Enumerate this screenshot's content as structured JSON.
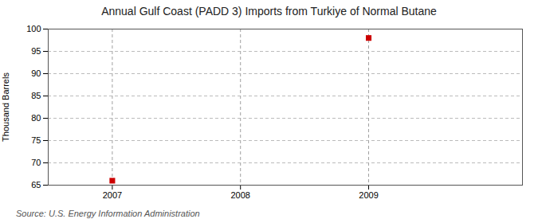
{
  "chart_data": {
    "type": "scatter",
    "title": "Annual Gulf Coast (PADD 3) Imports from Turkiye of Normal Butane",
    "ylabel": "Thousand Barrels",
    "annotation": "Source: U.S. Energy Information Administration",
    "x": [
      2007,
      2009
    ],
    "values": [
      66,
      98
    ],
    "color": "#cc0000",
    "marker": "square",
    "xlim": [
      2006.5,
      2010.2
    ],
    "ylim": [
      65,
      100
    ],
    "xticks": [
      2007,
      2008,
      2009
    ],
    "yticks": [
      65,
      70,
      75,
      80,
      85,
      90,
      95,
      100
    ],
    "grid": true
  }
}
